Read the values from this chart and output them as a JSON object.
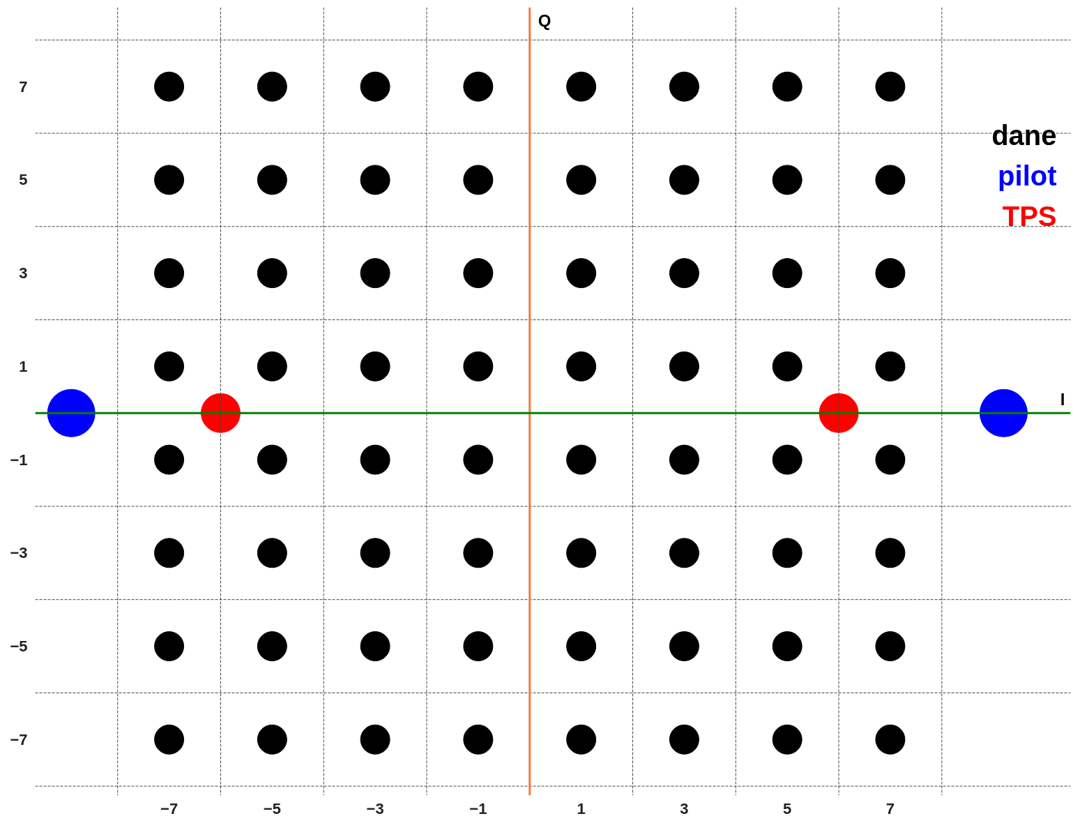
{
  "chart_data": {
    "type": "scatter",
    "xlim": [
      -9.6,
      10.5
    ],
    "ylim": [
      -8.2,
      8.7
    ],
    "xticks": [
      -7,
      -5,
      -3,
      -1,
      1,
      3,
      5,
      7
    ],
    "yticks": [
      -7,
      -5,
      -3,
      -1,
      1,
      3,
      5,
      7
    ],
    "grid": false,
    "legend": "top right",
    "marker": "circle",
    "series": [
      {
        "name": "dane",
        "color": "#000000",
        "x": [
          -7,
          -5,
          -3,
          -1,
          1,
          3,
          5,
          7,
          -7,
          -5,
          -3,
          -1,
          1,
          3,
          5,
          7,
          -7,
          -5,
          -3,
          -1,
          1,
          3,
          5,
          7,
          -7,
          -5,
          -3,
          -1,
          1,
          3,
          5,
          7,
          -7,
          -5,
          -3,
          -1,
          1,
          3,
          5,
          7,
          -7,
          -5,
          -3,
          -1,
          1,
          3,
          5,
          7,
          -7,
          -5,
          -3,
          -1,
          1,
          3,
          5,
          7,
          -7,
          -5,
          -3,
          -1,
          1,
          3,
          5,
          7
        ],
        "values": [
          7,
          7,
          7,
          7,
          7,
          7,
          7,
          7,
          5,
          5,
          5,
          5,
          5,
          5,
          5,
          5,
          3,
          3,
          3,
          3,
          3,
          3,
          3,
          3,
          1,
          1,
          1,
          1,
          1,
          1,
          1,
          1,
          -1,
          -1,
          -1,
          -1,
          -1,
          -1,
          -1,
          -1,
          -3,
          -3,
          -3,
          -3,
          -3,
          -3,
          -3,
          -3,
          -5,
          -5,
          -5,
          -5,
          -5,
          -5,
          -5,
          -5,
          -7,
          -7,
          -7,
          -7,
          -7,
          -7,
          -7,
          -7
        ]
      },
      {
        "name": "pilot",
        "color": "#0000ff",
        "x": [
          -8.9,
          9.2
        ],
        "values": [
          0,
          0
        ]
      },
      {
        "name": "TPS",
        "color": "#ff0000",
        "x": [
          -6.0,
          6.0
        ],
        "values": [
          0,
          0
        ]
      }
    ],
    "ref_lines": [
      {
        "axis": "x",
        "value": -8,
        "color": "#444444",
        "line_style": "dashed"
      },
      {
        "axis": "x",
        "value": -6,
        "color": "#444444",
        "line_style": "dashed"
      },
      {
        "axis": "x",
        "value": -4,
        "color": "#444444",
        "line_style": "dashed"
      },
      {
        "axis": "x",
        "value": -2,
        "color": "#444444",
        "line_style": "dashed"
      },
      {
        "axis": "x",
        "value": 2,
        "color": "#444444",
        "line_style": "dashed"
      },
      {
        "axis": "x",
        "value": 4,
        "color": "#444444",
        "line_style": "dashed"
      },
      {
        "axis": "x",
        "value": 6,
        "color": "#444444",
        "line_style": "dashed"
      },
      {
        "axis": "x",
        "value": 8,
        "color": "#444444",
        "line_style": "dashed"
      },
      {
        "axis": "y",
        "value": -8,
        "color": "#444444",
        "line_style": "dashed"
      },
      {
        "axis": "y",
        "value": -6,
        "color": "#444444",
        "line_style": "dashed"
      },
      {
        "axis": "y",
        "value": -4,
        "color": "#444444",
        "line_style": "dashed"
      },
      {
        "axis": "y",
        "value": -2,
        "color": "#444444",
        "line_style": "dashed"
      },
      {
        "axis": "y",
        "value": 2,
        "color": "#444444",
        "line_style": "dashed"
      },
      {
        "axis": "y",
        "value": 4,
        "color": "#444444",
        "line_style": "dashed"
      },
      {
        "axis": "y",
        "value": 6,
        "color": "#444444",
        "line_style": "dashed"
      },
      {
        "axis": "y",
        "value": 8,
        "color": "#444444",
        "line_style": "dashed"
      },
      {
        "axis": "x",
        "value": 0,
        "label": "Q",
        "color": "#f4793b",
        "line_style": "solid"
      },
      {
        "axis": "y",
        "value": 0,
        "label": "I",
        "color": "#008000",
        "line_style": "solid"
      }
    ]
  }
}
